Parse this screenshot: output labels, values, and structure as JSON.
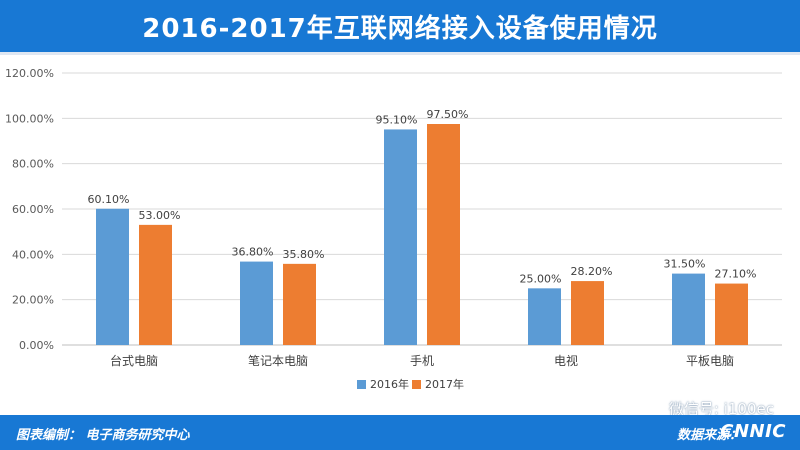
{
  "title": "2016-2017年互联网络接入设备使用情况",
  "footer": {
    "compiler": "图表编制：  电子商务研究中心",
    "source_label": "数据来源：",
    "source_name": "CNNIC"
  },
  "watermark": "微信号: i100ec",
  "colors": {
    "header": "#1878d4",
    "series2016": "#5b9bd5",
    "series2017": "#ed7d31"
  },
  "chart_data": {
    "type": "bar",
    "title": "2016-2017年互联网络接入设备使用情况",
    "categories": [
      "台式电脑",
      "笔记本电脑",
      "手机",
      "电视",
      "平板电脑"
    ],
    "series": [
      {
        "name": "2016年",
        "values": [
          60.1,
          36.8,
          95.1,
          25.0,
          31.5
        ],
        "labels": [
          "60.10%",
          "36.80%",
          "95.10%",
          "25.00%",
          "31.50%"
        ],
        "color": "#5b9bd5"
      },
      {
        "name": "2017年",
        "values": [
          53.0,
          35.8,
          97.5,
          28.2,
          27.1
        ],
        "labels": [
          "53.00%",
          "35.80%",
          "97.50%",
          "28.20%",
          "27.10%"
        ],
        "color": "#ed7d31"
      }
    ],
    "ylim": [
      0,
      120
    ],
    "yticks": [
      "0.00%",
      "20.00%",
      "40.00%",
      "60.00%",
      "80.00%",
      "100.00%",
      "120.00%"
    ],
    "grid": true,
    "legend": "bottom"
  }
}
